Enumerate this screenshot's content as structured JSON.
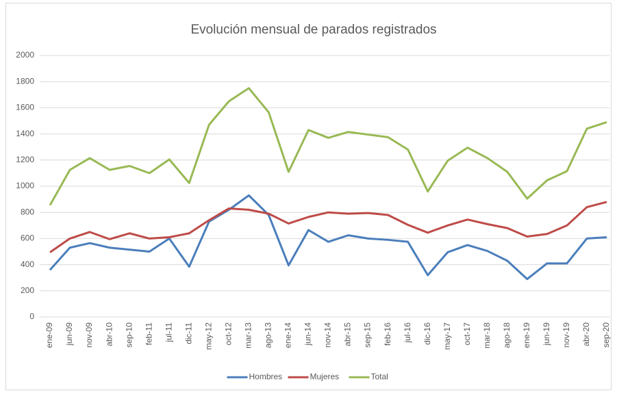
{
  "chart_data": {
    "type": "line",
    "title": "Evolución mensual de parados registrados",
    "categories": [
      "ene-09",
      "jun-09",
      "nov-09",
      "abr-10",
      "sep-10",
      "feb-11",
      "jul-11",
      "dic-11",
      "may-12",
      "oct-12",
      "mar-13",
      "ago-13",
      "ene-14",
      "jun-14",
      "nov-14",
      "abr-15",
      "sep-15",
      "feb-16",
      "jul-16",
      "dic-16",
      "may-17",
      "oct-17",
      "mar-18",
      "ago-18",
      "ene-19",
      "jun-19",
      "nov-19",
      "abr-20",
      "sep-20"
    ],
    "series": [
      {
        "name": "Hombres",
        "color": "#4a7ebb",
        "values": [
          360,
          530,
          565,
          530,
          515,
          500,
          600,
          385,
          730,
          820,
          930,
          780,
          395,
          665,
          575,
          625,
          600,
          590,
          575,
          320,
          495,
          550,
          505,
          430,
          290,
          410,
          410,
          600,
          610
        ]
      },
      {
        "name": "Mujeres",
        "color": "#be4b48",
        "values": [
          495,
          600,
          650,
          595,
          640,
          600,
          610,
          640,
          740,
          830,
          820,
          790,
          715,
          765,
          800,
          790,
          795,
          780,
          705,
          645,
          700,
          745,
          710,
          680,
          615,
          635,
          700,
          840,
          880
        ]
      },
      {
        "name": "Total",
        "color": "#98b954",
        "values": [
          855,
          1125,
          1215,
          1125,
          1155,
          1100,
          1205,
          1025,
          1470,
          1650,
          1750,
          1565,
          1110,
          1430,
          1370,
          1415,
          1395,
          1375,
          1280,
          960,
          1195,
          1295,
          1215,
          1110,
          905,
          1045,
          1115,
          1440,
          1490
        ]
      }
    ],
    "ylim": [
      0,
      2000
    ],
    "yticks": [
      0,
      200,
      400,
      600,
      800,
      1000,
      1200,
      1400,
      1600,
      1800,
      2000
    ],
    "grid": true,
    "legend": "bottom"
  }
}
